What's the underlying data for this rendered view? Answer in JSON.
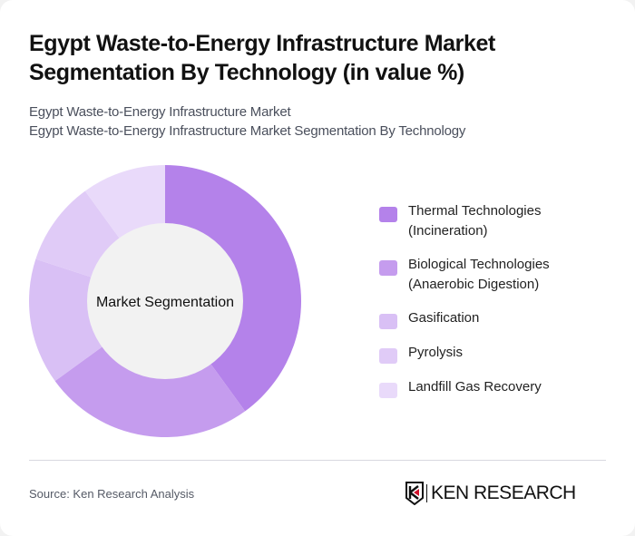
{
  "header": {
    "title": "Egypt Waste-to-Energy Infrastructure Market Segmentation By Technology (in value %)",
    "subtitle_line1": "Egypt Waste-to-Energy Infrastructure Market",
    "subtitle_line2": "Egypt Waste-to-Energy Infrastructure Market Segmentation By Technology"
  },
  "chart": {
    "center_label": "Market Segmentation"
  },
  "legend": [
    {
      "label": "Thermal Technologies\n(Incineration)",
      "color": "#b482ea"
    },
    {
      "label": "Biological Technologies\n(Anaerobic Digestion)",
      "color": "#c59cee"
    },
    {
      "label": "Gasification",
      "color": "#d9c0f5"
    },
    {
      "label": "Pyrolysis",
      "color": "#e0cbf7"
    },
    {
      "label": "Landfill Gas Recovery",
      "color": "#e9dafa"
    }
  ],
  "footer": {
    "source": "Source: Ken Research Analysis",
    "logo_text": "KEN RESEARCH"
  },
  "chart_data": {
    "type": "pie",
    "title": "Egypt Waste-to-Energy Infrastructure Market Segmentation By Technology (in value %)",
    "subtitle": "Egypt Waste-to-Energy Infrastructure Market Segmentation By Technology",
    "center_label": "Market Segmentation",
    "donut": true,
    "categories": [
      "Thermal Technologies (Incineration)",
      "Biological Technologies (Anaerobic Digestion)",
      "Gasification",
      "Pyrolysis",
      "Landfill Gas Recovery"
    ],
    "values": [
      40,
      25,
      15,
      10,
      10
    ],
    "colors": [
      "#b482ea",
      "#c59cee",
      "#d9c0f5",
      "#e0cbf7",
      "#e9dafa"
    ],
    "legend_position": "right",
    "unit": "%"
  }
}
